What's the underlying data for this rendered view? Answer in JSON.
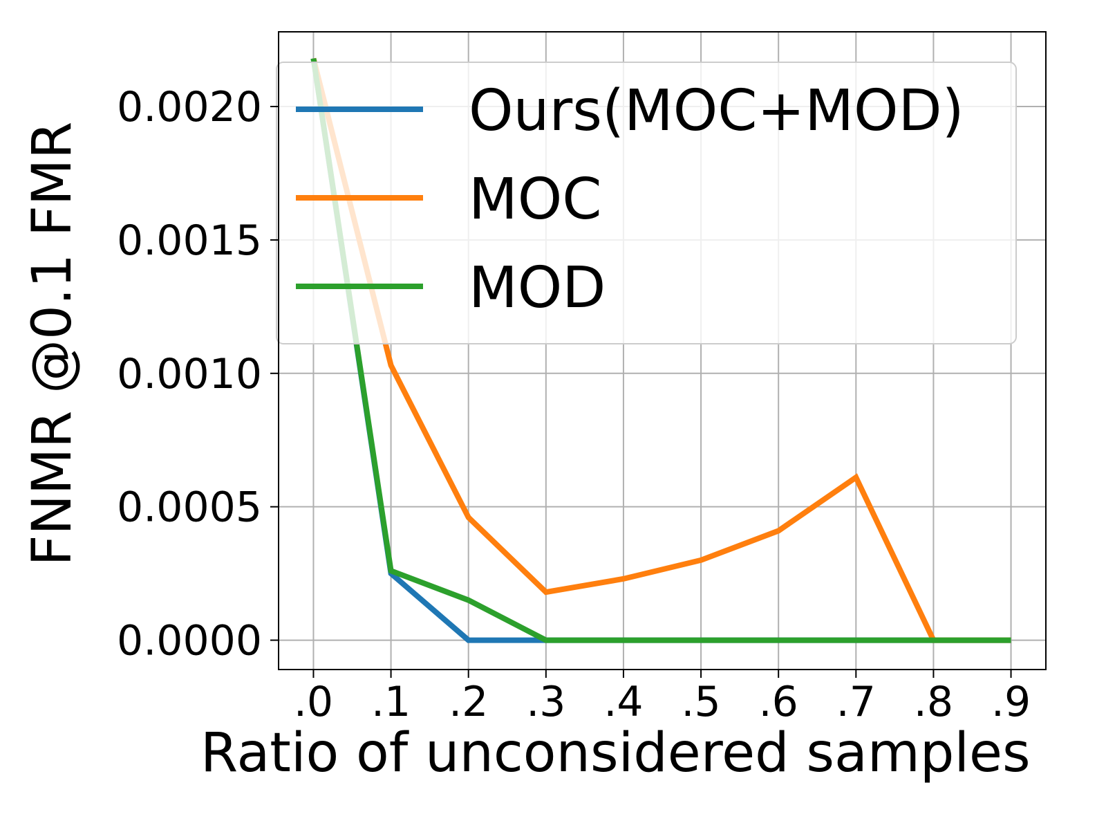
{
  "chart_data": {
    "type": "line",
    "xlabel": "Ratio of unconsidered samples",
    "ylabel": "FNMR @0.1 FMR",
    "x": [
      0.0,
      0.1,
      0.2,
      0.3,
      0.4,
      0.5,
      0.6,
      0.7,
      0.8,
      0.9
    ],
    "xtick_labels": [
      ".0",
      ".1",
      ".2",
      ".3",
      ".4",
      ".5",
      ".6",
      ".7",
      ".8",
      ".9"
    ],
    "yticks": [
      0.0,
      0.0005,
      0.001,
      0.0015,
      0.002
    ],
    "ytick_labels": [
      "0.0000",
      "0.0005",
      "0.0010",
      "0.0015",
      "0.0020"
    ],
    "xlim": [
      -0.045,
      0.945
    ],
    "ylim": [
      -0.00011,
      0.00228
    ],
    "grid": true,
    "legend_position": "top-right",
    "series": [
      {
        "name": "Ours(MOC+MOD)",
        "color": "#1f77b4",
        "values": [
          0.00218,
          0.00025,
          0.0,
          0.0,
          0.0,
          0.0,
          0.0,
          0.0,
          0.0,
          0.0
        ]
      },
      {
        "name": "MOC",
        "color": "#ff7f0e",
        "values": [
          0.00218,
          0.00103,
          0.00046,
          0.00018,
          0.00023,
          0.0003,
          0.00041,
          0.00061,
          0.0,
          0.0
        ]
      },
      {
        "name": "MOD",
        "color": "#2ca02c",
        "values": [
          0.00218,
          0.00026,
          0.00015,
          0.0,
          0.0,
          0.0,
          0.0,
          0.0,
          0.0,
          0.0
        ]
      }
    ]
  }
}
